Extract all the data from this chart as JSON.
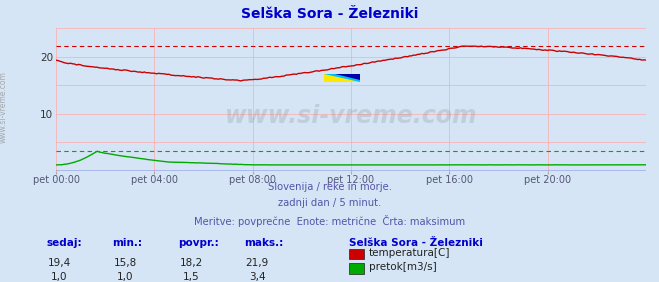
{
  "title": "Selška Sora - Železniki",
  "title_color": "#0000cc",
  "background_color": "#d5e5f5",
  "plot_bg_color": "#d5e5f5",
  "grid_color": "#ffaaaa",
  "xmin": 0,
  "xmax": 288,
  "ylim": [
    0,
    25
  ],
  "yticks_labeled": [
    10,
    20
  ],
  "xtick_labels": [
    "pet 00:00",
    "pet 04:00",
    "pet 08:00",
    "pet 12:00",
    "pet 16:00",
    "pet 20:00"
  ],
  "xtick_positions": [
    0,
    48,
    96,
    144,
    192,
    240
  ],
  "temp_max_line": 21.9,
  "flow_max_line": 3.4,
  "temp_color": "#cc0000",
  "flow_color": "#00aa00",
  "baseline_color": "#0000cc",
  "watermark_text": "www.si-vreme.com",
  "watermark_color": "#888888",
  "sidebar_text": "www.si-vreme.com",
  "subtitle1": "Slovenija / reke in morje.",
  "subtitle2": "zadnji dan / 5 minut.",
  "subtitle3": "Meritve: povprečne  Enote: metrične  Črta: maksimum",
  "subtitle_color": "#5555aa",
  "legend_title": "Selška Sora - Železniki",
  "legend_items": [
    "temperatura[C]",
    "pretok[m3/s]"
  ],
  "legend_colors": [
    "#cc0000",
    "#00aa00"
  ],
  "stats_headers": [
    "sedaj:",
    "min.:",
    "povpr.:",
    "maks.:"
  ],
  "stats_temp": [
    "19,4",
    "15,8",
    "18,2",
    "21,9"
  ],
  "stats_flow": [
    "1,0",
    "1,0",
    "1,5",
    "3,4"
  ],
  "stats_color": "#0000cc",
  "figsize": [
    6.59,
    2.82
  ],
  "dpi": 100
}
